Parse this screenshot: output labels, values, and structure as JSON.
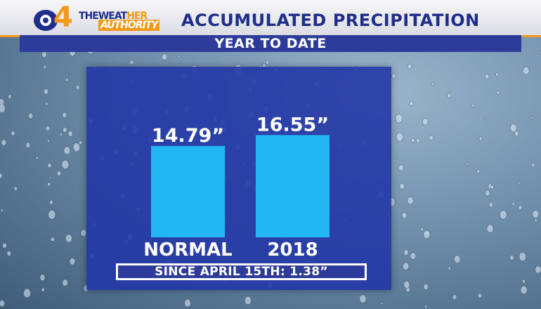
{
  "header": {
    "logo_number": "4",
    "brand_line1_a": "THEWEAT",
    "brand_line1_b": "HER",
    "brand_line2": "AUTHORITY",
    "title": "ACCUMULATED PRECIPITATION",
    "subtitle": "YEAR TO DATE"
  },
  "colors": {
    "header_blue": "#1f2e8a",
    "accent_orange": "#f39a1c",
    "panel_blue": "#2337a5",
    "bar_cyan": "#22b7f3"
  },
  "chart_data": {
    "type": "bar",
    "categories": [
      "NORMAL",
      "2018"
    ],
    "values": [
      14.79,
      16.55
    ],
    "value_labels": [
      "14.79”",
      "16.55”"
    ],
    "units": "inches",
    "grid": false
  },
  "footer": {
    "since_text": "SINCE APRIL 15TH: 1.38”"
  }
}
